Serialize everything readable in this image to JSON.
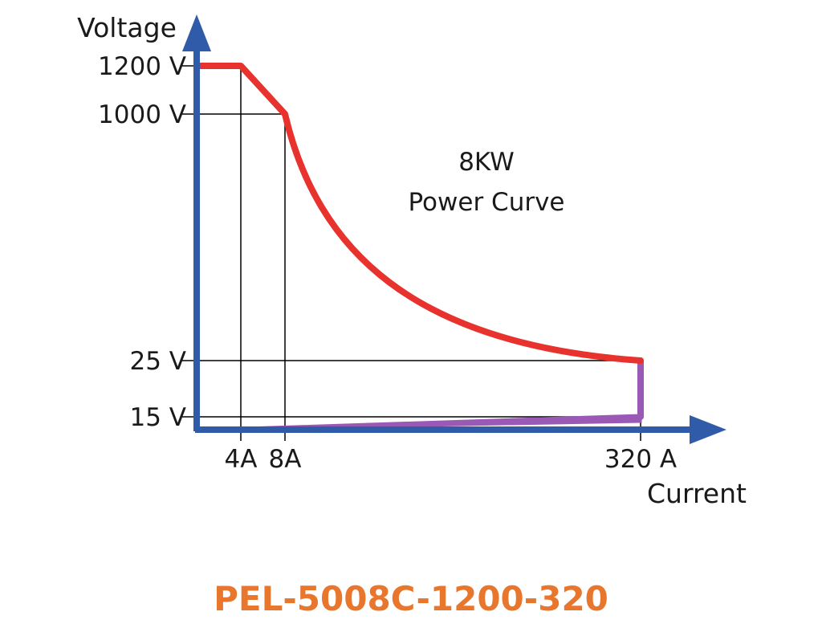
{
  "model_name": "PEL-5008C-1200-320",
  "colors": {
    "axis": "#2f5ba8",
    "power_curve": "#e8322e",
    "low_voltage_segment": "#9b59b6",
    "guide_lines": "#000000",
    "model_name": "#e8762d"
  },
  "chart_data": {
    "type": "line",
    "xlabel": "Current",
    "ylabel": "Voltage",
    "x_ticks": [
      {
        "value": 4,
        "label": "4A"
      },
      {
        "value": 8,
        "label": "8A"
      },
      {
        "value": 320,
        "label": "320 A"
      }
    ],
    "y_ticks": [
      {
        "value": 1200,
        "label": "1200 V"
      },
      {
        "value": 1000,
        "label": "1000 V"
      },
      {
        "value": 25,
        "label": "25 V"
      },
      {
        "value": 15,
        "label": "15 V"
      }
    ],
    "annotation": [
      "8KW",
      "Power Curve"
    ],
    "series": [
      {
        "name": "8KW Power Curve",
        "points": [
          [
            0,
            1200
          ],
          [
            4,
            1200
          ],
          [
            8,
            1000
          ],
          [
            16,
            500
          ],
          [
            40,
            200
          ],
          [
            80,
            100
          ],
          [
            160,
            50
          ],
          [
            320,
            25
          ]
        ]
      },
      {
        "points": [
          [
            320,
            25
          ],
          [
            320,
            15
          ],
          [
            0,
            0
          ]
        ]
      }
    ],
    "grid": false
  }
}
